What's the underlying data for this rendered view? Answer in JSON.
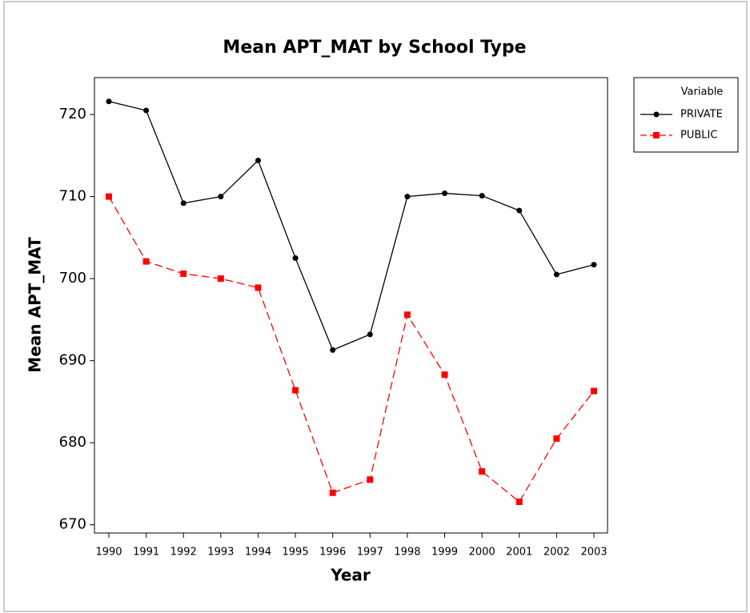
{
  "chart_data": {
    "type": "line",
    "title": "Mean APT_MAT by School Type",
    "x_label": "Year",
    "y_label": "Mean APT_MAT",
    "categories": [
      "1990",
      "1991",
      "1992",
      "1993",
      "1994",
      "1995",
      "1996",
      "1997",
      "1998",
      "1999",
      "2000",
      "2001",
      "2002",
      "2003"
    ],
    "series": [
      {
        "name": "PRIVATE",
        "color": "#000000",
        "marker": "circle",
        "dash": "solid",
        "values": [
          721.6,
          720.5,
          709.2,
          710.0,
          714.4,
          702.5,
          691.3,
          693.2,
          710.0,
          710.4,
          710.1,
          708.3,
          700.5,
          701.7
        ]
      },
      {
        "name": "PUBLIC",
        "color": "#ff0000",
        "marker": "square",
        "dash": "dashed",
        "values": [
          710.0,
          702.1,
          700.6,
          700.0,
          698.9,
          686.4,
          673.9,
          675.5,
          695.6,
          688.3,
          676.5,
          672.8,
          680.5,
          686.3
        ]
      }
    ],
    "legend_title": "Variable",
    "legend_position": "right",
    "ylim": [
      669.0,
      724.5
    ],
    "yticks": [
      670,
      680,
      690,
      700,
      710,
      720
    ],
    "grid": false
  }
}
